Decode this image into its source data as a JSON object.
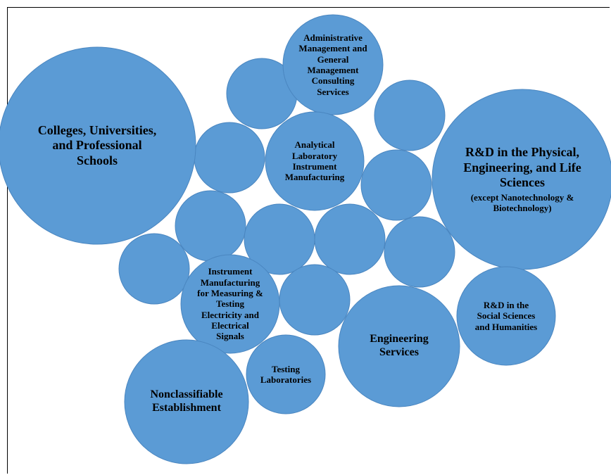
{
  "bubbles": [
    {
      "id": "colleges",
      "lines": [
        "Colleges, Universities,",
        "and Professional",
        "Schools"
      ],
      "size": "lg"
    },
    {
      "id": "rnd-physical",
      "lines": [
        "R&D in the Physical,",
        "Engineering, and Life",
        "Sciences"
      ],
      "sub": [
        "(except Nanotechnology &",
        "Biotechnology)"
      ],
      "size": "lg"
    },
    {
      "id": "admin-consulting",
      "lines": [
        "Administrative",
        "Management and",
        "General",
        "Management",
        "Consulting",
        "Services"
      ],
      "size": "sm"
    },
    {
      "id": "analytical-lab",
      "lines": [
        "Analytical",
        "Laboratory",
        "Instrument",
        "Manufacturing"
      ],
      "size": "sm"
    },
    {
      "id": "instrument-measuring",
      "lines": [
        "Instrument",
        "Manufacturing",
        "for Measuring &",
        "Testing",
        "Electricity and",
        "Electrical",
        "Signals"
      ],
      "size": "sm"
    },
    {
      "id": "engineering-services",
      "lines": [
        "Engineering",
        "Services"
      ],
      "size": "md"
    },
    {
      "id": "rnd-social",
      "lines": [
        "R&D in the",
        "Social Sciences",
        "and Humanities"
      ],
      "size": "sm"
    },
    {
      "id": "testing-labs",
      "lines": [
        "Testing",
        "Laboratories"
      ],
      "size": "sm"
    },
    {
      "id": "nonclassifiable",
      "lines": [
        "Nonclassifiable",
        "Establishment"
      ],
      "size": "md"
    }
  ],
  "colors": {
    "bubble_fill": "#5b9bd5",
    "bubble_stroke": "#4a86c0",
    "text": "#000000",
    "frame": "#000000"
  }
}
